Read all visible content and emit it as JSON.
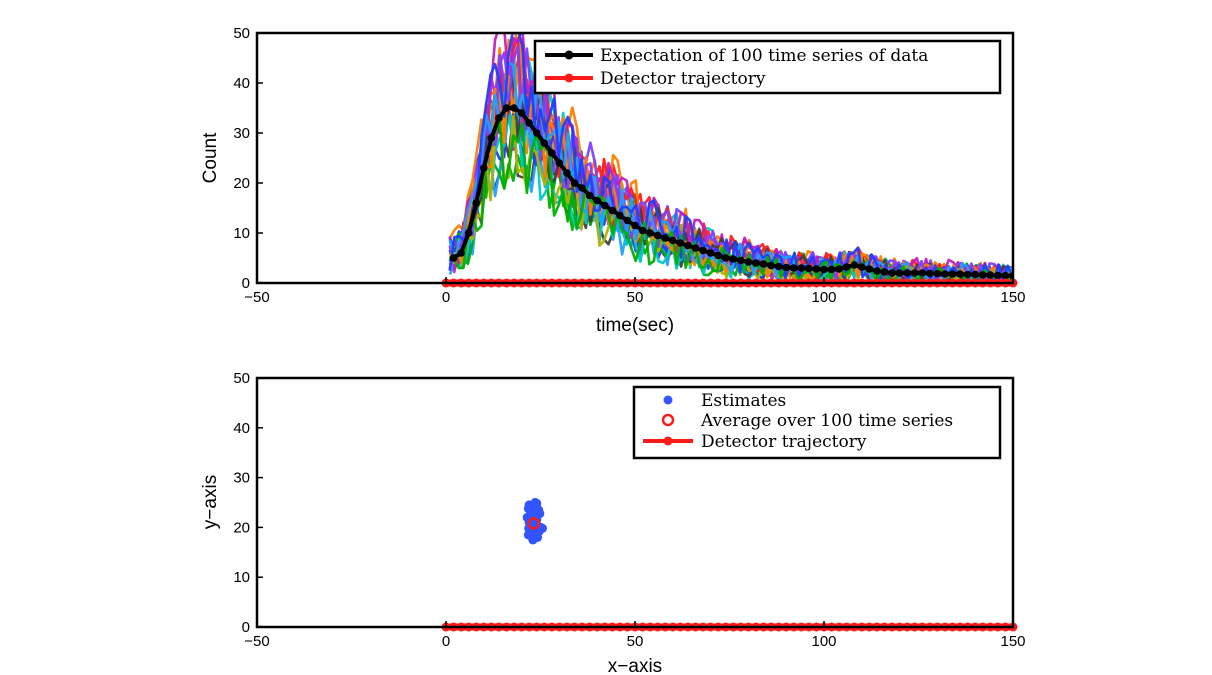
{
  "chart_data": [
    {
      "type": "line",
      "xlabel": "time(sec)",
      "ylabel": "Count",
      "xlim": [
        -50,
        150
      ],
      "ylim": [
        0,
        50
      ],
      "xticks": [
        -50,
        0,
        50,
        100,
        150
      ],
      "yticks": [
        0,
        10,
        20,
        30,
        40,
        50
      ],
      "legend_position": "top-right",
      "noise_series_count": 100,
      "noise_colors": [
        "#1f3fff",
        "#00b000",
        "#ff2020",
        "#00c8c8",
        "#c020c0",
        "#b0b000",
        "#404040",
        "#ff8000",
        "#8040ff",
        "#20a0ff"
      ],
      "series": [
        {
          "name": "Expectation of 100 time series of data",
          "color": "#000000",
          "x": [
            2,
            4,
            6,
            8,
            10,
            12,
            14,
            16,
            18,
            20,
            22,
            24,
            26,
            28,
            30,
            32,
            34,
            36,
            38,
            40,
            42,
            44,
            46,
            48,
            50,
            52,
            54,
            56,
            58,
            60,
            62,
            64,
            66,
            68,
            70,
            72,
            74,
            76,
            78,
            80,
            82,
            84,
            86,
            88,
            90,
            92,
            94,
            96,
            98,
            100,
            102,
            104,
            106,
            108,
            110,
            112,
            114,
            116,
            118,
            120,
            122,
            124,
            126,
            128,
            130,
            132,
            134,
            136,
            138,
            140,
            142,
            144,
            146,
            148,
            150
          ],
          "y": [
            5,
            6,
            10,
            16,
            23,
            29,
            33,
            35,
            35,
            34,
            32,
            30,
            28,
            26,
            24,
            22,
            20,
            19,
            17.5,
            16.5,
            15.5,
            14.5,
            13.5,
            12.5,
            11.5,
            10.5,
            10,
            9.5,
            9,
            8.5,
            8,
            7.5,
            7,
            6.5,
            6,
            5.5,
            5,
            4.8,
            4.5,
            4.2,
            4,
            3.8,
            3.5,
            3.3,
            3.1,
            3,
            3,
            2.9,
            2.8,
            2.7,
            2.7,
            2.8,
            3.2,
            3.6,
            3.2,
            2.8,
            2.4,
            2.2,
            2,
            2,
            2,
            2,
            2,
            1.9,
            1.9,
            1.8,
            1.8,
            1.8,
            1.7,
            1.7,
            1.6,
            1.6,
            1.5,
            1.5,
            1.4
          ]
        },
        {
          "name": "Detector trajectory",
          "color": "#ff1a1a",
          "x_range": [
            0,
            150
          ],
          "y_value": 0
        }
      ]
    },
    {
      "type": "scatter",
      "xlabel": "x−axis",
      "ylabel": "y−axis",
      "xlim": [
        -50,
        150
      ],
      "ylim": [
        0,
        50
      ],
      "xticks": [
        -50,
        0,
        50,
        100,
        150
      ],
      "yticks": [
        0,
        10,
        20,
        30,
        40,
        50
      ],
      "legend_position": "top-right",
      "series": [
        {
          "name": "Estimates",
          "color": "#3355ff",
          "points": [
            [
              22,
              24.5
            ],
            [
              23,
              24
            ],
            [
              24,
              24.8
            ],
            [
              22.5,
              23
            ],
            [
              23.5,
              22.5
            ],
            [
              21.5,
              22
            ],
            [
              24.5,
              23.5
            ],
            [
              22,
              21
            ],
            [
              23,
              20.5
            ],
            [
              24,
              21.5
            ],
            [
              25,
              20
            ],
            [
              22.5,
              19.5
            ],
            [
              23.5,
              19
            ],
            [
              21.8,
              18.5
            ],
            [
              24.2,
              18
            ],
            [
              23,
              17.5
            ],
            [
              22.2,
              20
            ],
            [
              24.8,
              22.8
            ],
            [
              21.8,
              23.8
            ],
            [
              23.6,
              25
            ],
            [
              22.8,
              18.8
            ],
            [
              24.6,
              19.2
            ],
            [
              25.5,
              19.8
            ],
            [
              21.9,
              19.8
            ],
            [
              23.3,
              21.9
            ]
          ]
        },
        {
          "name": "Average over 100 time series",
          "color": "#ff1a1a",
          "points": [
            [
              23.2,
              20.8
            ]
          ]
        },
        {
          "name": "Detector trajectory",
          "color": "#ff1a1a",
          "x_range": [
            0,
            150
          ],
          "y_value": 0
        }
      ]
    }
  ]
}
